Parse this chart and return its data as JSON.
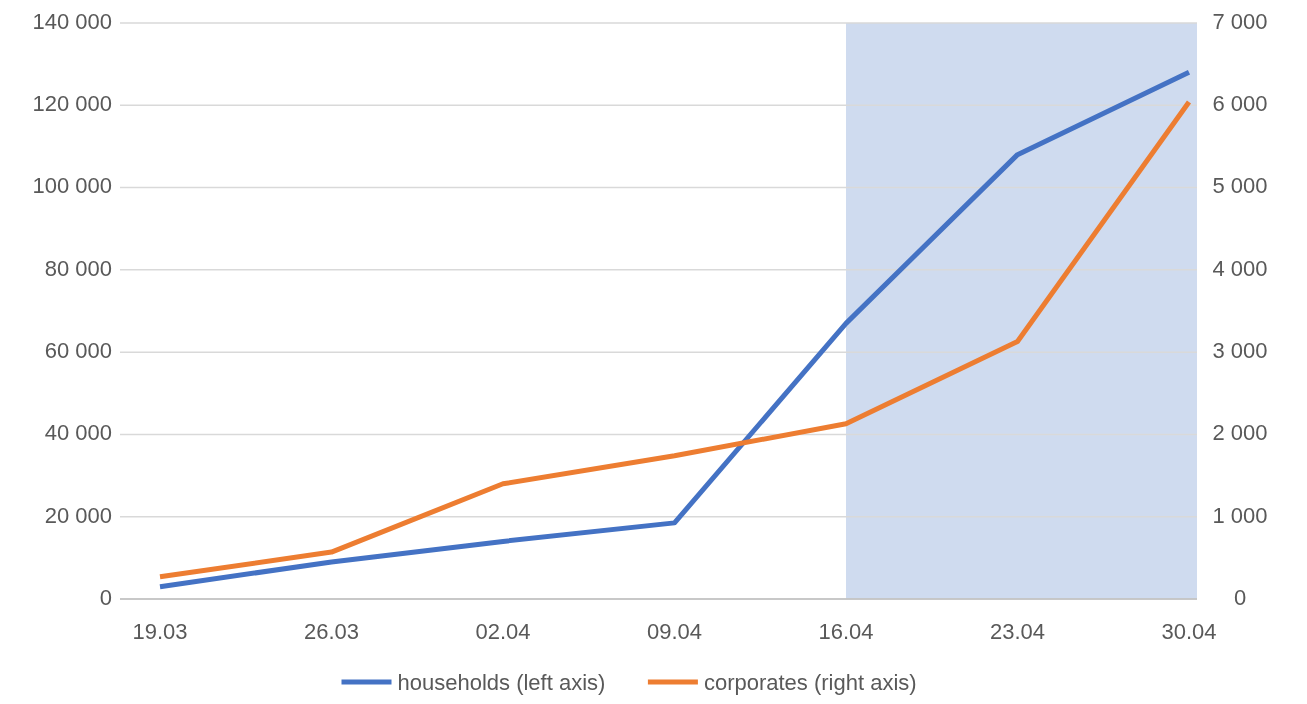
{
  "chart_data": {
    "type": "line",
    "categories": [
      "19.03",
      "26.03",
      "02.04",
      "09.04",
      "16.04",
      "23.04",
      "30.04"
    ],
    "series": [
      {
        "name": "households (left axis)",
        "color": "#4472c4",
        "values": [
          3000,
          9000,
          14000,
          18500,
          67000,
          108000,
          128000
        ]
      },
      {
        "name": "corporates (right axis)",
        "color": "#ed7d31",
        "axis": "y2",
        "values": [
          270,
          570,
          1400,
          1740,
          2130,
          3130,
          6040
        ]
      }
    ],
    "ylim": [
      0,
      140000
    ],
    "yticks": [
      {
        "value": 0,
        "label": "0"
      },
      {
        "value": 20000,
        "label": "20 000"
      },
      {
        "value": 40000,
        "label": "40 000"
      },
      {
        "value": 60000,
        "label": "60 000"
      },
      {
        "value": 80000,
        "label": "80 000"
      },
      {
        "value": 100000,
        "label": "100 000"
      },
      {
        "value": 120000,
        "label": "120 000"
      },
      {
        "value": 140000,
        "label": "140 000"
      }
    ],
    "y2lim": [
      0,
      7000
    ],
    "y2ticks": [
      {
        "value": 0,
        "label": "0"
      },
      {
        "value": 1000,
        "label": "1 000"
      },
      {
        "value": 2000,
        "label": "2 000"
      },
      {
        "value": 3000,
        "label": "3 000"
      },
      {
        "value": 4000,
        "label": "4 000"
      },
      {
        "value": 5000,
        "label": "5 000"
      },
      {
        "value": 6000,
        "label": "6 000"
      },
      {
        "value": 7000,
        "label": "7 000"
      }
    ],
    "bands": [
      {
        "axis": "x",
        "from": "16.04",
        "to": "30.04",
        "color": "#cfdbef"
      }
    ],
    "grid": "y",
    "legend": "bottom",
    "marker": "none",
    "line_style": "solid"
  }
}
